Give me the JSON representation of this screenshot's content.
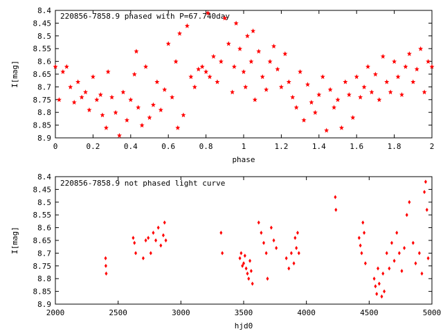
{
  "chart_data": [
    {
      "type": "scatter",
      "title": "220856-7858.9 phased with P=67.740day",
      "xlabel": "phase",
      "ylabel": "I[mag]",
      "xlim": [
        0,
        2
      ],
      "ylim": [
        8.9,
        8.4
      ],
      "y_inverted": true,
      "xticks": [
        "0",
        "0.2",
        "0.4",
        "0.6",
        "0.8",
        "1",
        "1.2",
        "1.4",
        "1.6",
        "1.8",
        "2"
      ],
      "yticks": [
        "8.4",
        "8.45",
        "8.5",
        "8.55",
        "8.6",
        "8.65",
        "8.7",
        "8.75",
        "8.8",
        "8.85",
        "8.9"
      ],
      "marker_color": "#ff0000",
      "points": [
        [
          0.0,
          8.62
        ],
        [
          0.02,
          8.75
        ],
        [
          0.04,
          8.64
        ],
        [
          0.06,
          8.62
        ],
        [
          0.08,
          8.7
        ],
        [
          0.1,
          8.76
        ],
        [
          0.12,
          8.68
        ],
        [
          0.14,
          8.74
        ],
        [
          0.16,
          8.72
        ],
        [
          0.18,
          8.79
        ],
        [
          0.2,
          8.66
        ],
        [
          0.22,
          8.75
        ],
        [
          0.24,
          8.73
        ],
        [
          0.25,
          8.81
        ],
        [
          0.27,
          8.86
        ],
        [
          0.28,
          8.64
        ],
        [
          0.3,
          8.74
        ],
        [
          0.32,
          8.8
        ],
        [
          0.34,
          8.89
        ],
        [
          0.36,
          8.72
        ],
        [
          0.38,
          8.83
        ],
        [
          0.4,
          8.75
        ],
        [
          0.42,
          8.65
        ],
        [
          0.43,
          8.56
        ],
        [
          0.44,
          8.78
        ],
        [
          0.46,
          8.85
        ],
        [
          0.48,
          8.62
        ],
        [
          0.5,
          8.82
        ],
        [
          0.52,
          8.77
        ],
        [
          0.54,
          8.68
        ],
        [
          0.56,
          8.79
        ],
        [
          0.58,
          8.71
        ],
        [
          0.6,
          8.53
        ],
        [
          0.62,
          8.74
        ],
        [
          0.64,
          8.6
        ],
        [
          0.65,
          8.86
        ],
        [
          0.66,
          8.49
        ],
        [
          0.68,
          8.81
        ],
        [
          0.7,
          8.46
        ],
        [
          0.72,
          8.66
        ],
        [
          0.74,
          8.7
        ],
        [
          0.76,
          8.63
        ],
        [
          0.78,
          8.62
        ],
        [
          0.8,
          8.64
        ],
        [
          0.81,
          8.41
        ],
        [
          0.82,
          8.66
        ],
        [
          0.84,
          8.58
        ],
        [
          0.86,
          8.68
        ],
        [
          0.88,
          8.6
        ],
        [
          0.9,
          8.43
        ],
        [
          0.92,
          8.53
        ],
        [
          0.94,
          8.72
        ],
        [
          0.95,
          8.62
        ],
        [
          0.96,
          8.45
        ],
        [
          0.98,
          8.55
        ],
        [
          1.0,
          8.64
        ],
        [
          1.01,
          8.7
        ],
        [
          1.02,
          8.5
        ],
        [
          1.04,
          8.6
        ],
        [
          1.05,
          8.48
        ],
        [
          1.06,
          8.75
        ],
        [
          1.08,
          8.56
        ],
        [
          1.1,
          8.66
        ],
        [
          1.12,
          8.71
        ],
        [
          1.14,
          8.6
        ],
        [
          1.16,
          8.54
        ],
        [
          1.18,
          8.63
        ],
        [
          1.2,
          8.7
        ],
        [
          1.22,
          8.57
        ],
        [
          1.24,
          8.68
        ],
        [
          1.26,
          8.74
        ],
        [
          1.28,
          8.78
        ],
        [
          1.3,
          8.64
        ],
        [
          1.32,
          8.83
        ],
        [
          1.34,
          8.69
        ],
        [
          1.36,
          8.76
        ],
        [
          1.38,
          8.8
        ],
        [
          1.4,
          8.73
        ],
        [
          1.42,
          8.66
        ],
        [
          1.44,
          8.87
        ],
        [
          1.46,
          8.71
        ],
        [
          1.48,
          8.78
        ],
        [
          1.5,
          8.75
        ],
        [
          1.52,
          8.86
        ],
        [
          1.54,
          8.68
        ],
        [
          1.56,
          8.73
        ],
        [
          1.58,
          8.82
        ],
        [
          1.6,
          8.66
        ],
        [
          1.62,
          8.74
        ],
        [
          1.64,
          8.7
        ],
        [
          1.66,
          8.62
        ],
        [
          1.68,
          8.72
        ],
        [
          1.7,
          8.65
        ],
        [
          1.72,
          8.75
        ],
        [
          1.74,
          8.58
        ],
        [
          1.76,
          8.68
        ],
        [
          1.78,
          8.72
        ],
        [
          1.8,
          8.6
        ],
        [
          1.82,
          8.66
        ],
        [
          1.84,
          8.73
        ],
        [
          1.86,
          8.62
        ],
        [
          1.88,
          8.57
        ],
        [
          1.9,
          8.68
        ],
        [
          1.92,
          8.63
        ],
        [
          1.94,
          8.55
        ],
        [
          1.96,
          8.72
        ],
        [
          1.98,
          8.6
        ],
        [
          2.0,
          8.62
        ]
      ]
    },
    {
      "type": "scatter",
      "title": "220856-7858.9 not phased light curve",
      "xlabel": "hjd0",
      "ylabel": "I[mag]",
      "xlim": [
        2000,
        5000
      ],
      "ylim": [
        8.9,
        8.4
      ],
      "y_inverted": true,
      "xticks": [
        "2000",
        "2500",
        "3000",
        "3500",
        "4000",
        "4500",
        "5000"
      ],
      "yticks": [
        "8.4",
        "8.45",
        "8.5",
        "8.55",
        "8.6",
        "8.65",
        "8.7",
        "8.75",
        "8.8",
        "8.85",
        "8.9"
      ],
      "marker_color": "#ff0000",
      "points": [
        [
          2400,
          8.72
        ],
        [
          2402,
          8.75
        ],
        [
          2405,
          8.78
        ],
        [
          2620,
          8.64
        ],
        [
          2630,
          8.66
        ],
        [
          2640,
          8.7
        ],
        [
          2700,
          8.72
        ],
        [
          2720,
          8.65
        ],
        [
          2740,
          8.64
        ],
        [
          2760,
          8.7
        ],
        [
          2780,
          8.62
        ],
        [
          2800,
          8.65
        ],
        [
          2820,
          8.6
        ],
        [
          2840,
          8.67
        ],
        [
          2860,
          8.63
        ],
        [
          2870,
          8.58
        ],
        [
          2880,
          8.65
        ],
        [
          3320,
          8.62
        ],
        [
          3330,
          8.7
        ],
        [
          3470,
          8.72
        ],
        [
          3480,
          8.7
        ],
        [
          3490,
          8.75
        ],
        [
          3500,
          8.74
        ],
        [
          3510,
          8.71
        ],
        [
          3520,
          8.76
        ],
        [
          3530,
          8.78
        ],
        [
          3540,
          8.8
        ],
        [
          3550,
          8.73
        ],
        [
          3560,
          8.77
        ],
        [
          3570,
          8.82
        ],
        [
          3620,
          8.58
        ],
        [
          3640,
          8.62
        ],
        [
          3660,
          8.66
        ],
        [
          3680,
          8.7
        ],
        [
          3690,
          8.8
        ],
        [
          3720,
          8.6
        ],
        [
          3740,
          8.65
        ],
        [
          3760,
          8.68
        ],
        [
          3840,
          8.72
        ],
        [
          3860,
          8.76
        ],
        [
          3880,
          8.7
        ],
        [
          3900,
          8.74
        ],
        [
          3910,
          8.64
        ],
        [
          3920,
          8.68
        ],
        [
          3930,
          8.62
        ],
        [
          3940,
          8.7
        ],
        [
          4230,
          8.48
        ],
        [
          4235,
          8.53
        ],
        [
          4420,
          8.64
        ],
        [
          4430,
          8.67
        ],
        [
          4440,
          8.7
        ],
        [
          4450,
          8.58
        ],
        [
          4460,
          8.62
        ],
        [
          4470,
          8.74
        ],
        [
          4540,
          8.8
        ],
        [
          4550,
          8.83
        ],
        [
          4560,
          8.86
        ],
        [
          4570,
          8.76
        ],
        [
          4580,
          8.82
        ],
        [
          4600,
          8.87
        ],
        [
          4610,
          8.78
        ],
        [
          4620,
          8.85
        ],
        [
          4640,
          8.7
        ],
        [
          4660,
          8.76
        ],
        [
          4680,
          8.66
        ],
        [
          4700,
          8.73
        ],
        [
          4720,
          8.62
        ],
        [
          4740,
          8.7
        ],
        [
          4760,
          8.77
        ],
        [
          4780,
          8.68
        ],
        [
          4800,
          8.55
        ],
        [
          4820,
          8.5
        ],
        [
          4850,
          8.66
        ],
        [
          4870,
          8.74
        ],
        [
          4900,
          8.7
        ],
        [
          4920,
          8.78
        ],
        [
          4940,
          8.46
        ],
        [
          4950,
          8.42
        ],
        [
          4960,
          8.53
        ],
        [
          4970,
          8.72
        ]
      ]
    }
  ]
}
